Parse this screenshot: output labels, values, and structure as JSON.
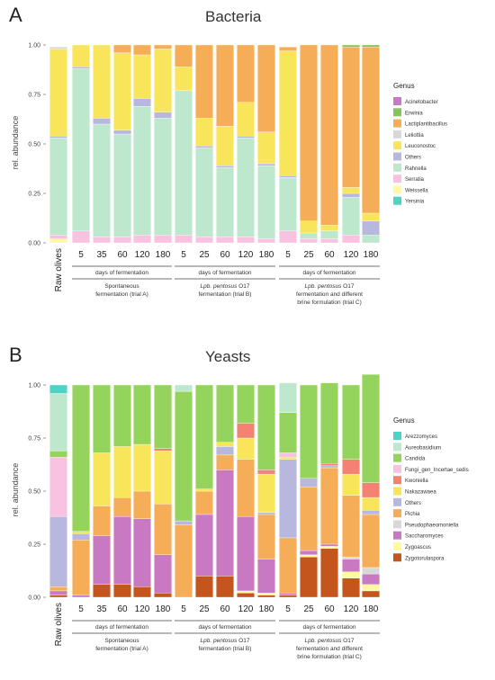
{
  "chart_data": [
    {
      "type": "bar",
      "stacked": true,
      "panel_letter": "A",
      "title": "Bacteria",
      "ylabel": "rel. abundance",
      "ylim": [
        0,
        1
      ],
      "yticks": [
        "0.00",
        "0.25",
        "0.50",
        "0.75",
        "1.00"
      ],
      "categories": [
        "Raw olives",
        "5",
        "35",
        "60",
        "120",
        "180",
        "5",
        "25",
        "60",
        "120",
        "180",
        "5",
        "25",
        "60",
        "120",
        "180"
      ],
      "groups": [
        {
          "header": "days of fermentation",
          "caption": [
            "Spontaneous",
            "fermentation (trial A)"
          ]
        },
        {
          "header": "days of fermentation",
          "caption_italic": "Lpb. pentosus",
          "caption": [
            " O17",
            "fermentation (trial B)"
          ]
        },
        {
          "header": "days of fermentation",
          "caption_italic": "Lpb. pentosus",
          "caption": [
            " O17",
            "fermentation and different",
            "brine formulation (trial C)"
          ]
        }
      ],
      "legend_title": "Genus",
      "series": [
        {
          "name": "Yersinia",
          "color": "#4fd3c4",
          "values": [
            0.0,
            0,
            0,
            0,
            0,
            0,
            0,
            0,
            0,
            0,
            0,
            0,
            0,
            0,
            0.0,
            0
          ]
        },
        {
          "name": "Weissella",
          "color": "#fff9a6",
          "values": [
            0.02,
            0,
            0,
            0,
            0,
            0,
            0,
            0,
            0,
            0,
            0,
            0,
            0,
            0,
            0.0,
            0
          ]
        },
        {
          "name": "Serratia",
          "color": "#f9c2e0",
          "values": [
            0.02,
            0.06,
            0.03,
            0.03,
            0.04,
            0.04,
            0.04,
            0.03,
            0.03,
            0.03,
            0.02,
            0.06,
            0.02,
            0.02,
            0.04,
            0.0
          ]
        },
        {
          "name": "Rahnella",
          "color": "#bde8cd",
          "values": [
            0.49,
            0.82,
            0.57,
            0.52,
            0.65,
            0.59,
            0.73,
            0.45,
            0.35,
            0.5,
            0.37,
            0.27,
            0.03,
            0.04,
            0.19,
            0.04
          ]
        },
        {
          "name": "Others",
          "color": "#b8b8de",
          "values": [
            0.01,
            0.01,
            0.03,
            0.02,
            0.04,
            0.03,
            0.0,
            0.01,
            0.01,
            0.01,
            0.01,
            0.01,
            0.0,
            0.0,
            0.02,
            0.07
          ]
        },
        {
          "name": "Leuconostoc",
          "color": "#f9e559",
          "values": [
            0.44,
            0.11,
            0.37,
            0.39,
            0.22,
            0.32,
            0.12,
            0.14,
            0.2,
            0.17,
            0.16,
            0.63,
            0.06,
            0.03,
            0.03,
            0.04
          ]
        },
        {
          "name": "Leliottia",
          "color": "#d8d8d8",
          "values": [
            0.01,
            0,
            0,
            0,
            0,
            0,
            0,
            0,
            0,
            0,
            0,
            0,
            0,
            0,
            0,
            0
          ]
        },
        {
          "name": "Lactiplantibacillus",
          "color": "#f6ad57",
          "values": [
            0.0,
            0.0,
            0.0,
            0.04,
            0.05,
            0.02,
            0.11,
            0.37,
            0.41,
            0.29,
            0.44,
            0.02,
            0.89,
            0.91,
            0.71,
            0.84
          ]
        },
        {
          "name": "Erwinia",
          "color": "#84c45c",
          "values": [
            0,
            0,
            0,
            0,
            0,
            0,
            0,
            0,
            0,
            0,
            0,
            0,
            0.0,
            0.0,
            0.01,
            0.01
          ]
        },
        {
          "name": "Acinetobacter",
          "color": "#c87ac7",
          "values": [
            0,
            0,
            0,
            0,
            0,
            0,
            0,
            0,
            0,
            0,
            0,
            0,
            0,
            0,
            0.0,
            0
          ]
        }
      ]
    },
    {
      "type": "bar",
      "stacked": true,
      "panel_letter": "B",
      "title": "Yeasts",
      "ylabel": "rel. abundance",
      "ylim": [
        0,
        1
      ],
      "yticks": [
        "0.00",
        "0.25",
        "0.50",
        "0.75",
        "1.00"
      ],
      "categories": [
        "Raw olives",
        "5",
        "35",
        "60",
        "120",
        "180",
        "5",
        "25",
        "60",
        "120",
        "180",
        "5",
        "25",
        "60",
        "120",
        "180"
      ],
      "groups": [
        {
          "header": "days of fermentation",
          "caption": [
            "Spontaneous",
            "fermentation (trial A)"
          ]
        },
        {
          "header": "days of fermentation",
          "caption_italic": "Lpb. pentosus",
          "caption": [
            " O17",
            "fermentation (trial B)"
          ]
        },
        {
          "header": "days of fermentation",
          "caption_italic": "Lpb. pentosus",
          "caption": [
            " O17",
            "fermentation and different",
            "brine formulation (trial C)"
          ]
        }
      ],
      "legend_title": "Genus",
      "series": [
        {
          "name": "Zygotorulaspora",
          "color": "#c4561d",
          "values": [
            0.01,
            0.0,
            0.06,
            0.06,
            0.05,
            0.02,
            0.0,
            0.1,
            0.1,
            0.02,
            0.01,
            0.01,
            0.19,
            0.23,
            0.09,
            0.03
          ]
        },
        {
          "name": "Zygoascus",
          "color": "#fffaa0",
          "values": [
            0,
            0,
            0,
            0,
            0,
            0,
            0,
            0,
            0,
            0.01,
            0.01,
            0,
            0.01,
            0.01,
            0.03,
            0.03
          ]
        },
        {
          "name": "Saccharomyces",
          "color": "#c978c2",
          "values": [
            0.02,
            0.01,
            0.23,
            0.32,
            0.32,
            0.18,
            0.0,
            0.29,
            0.5,
            0.35,
            0.16,
            0.01,
            0.02,
            0.01,
            0.06,
            0.05
          ]
        },
        {
          "name": "Pseudophaeomoniella",
          "color": "#d8d8d8",
          "values": [
            0,
            0,
            0,
            0,
            0,
            0,
            0,
            0,
            0,
            0,
            0,
            0,
            0,
            0,
            0.01,
            0.03
          ]
        },
        {
          "name": "Pichia",
          "color": "#f6ad57",
          "values": [
            0.02,
            0.26,
            0.14,
            0.09,
            0.13,
            0.24,
            0.34,
            0.11,
            0.07,
            0.27,
            0.21,
            0.26,
            0.3,
            0.36,
            0.29,
            0.25
          ]
        },
        {
          "name": "Others",
          "color": "#b8b8de",
          "values": [
            0.33,
            0.03,
            0.0,
            0.0,
            0.0,
            0.0,
            0.02,
            0.0,
            0.04,
            0.0,
            0.01,
            0.37,
            0.04,
            0.01,
            0.0,
            0.02
          ]
        },
        {
          "name": "Nakazawaea",
          "color": "#f9e559",
          "values": [
            0,
            0.01,
            0.25,
            0.24,
            0.22,
            0.25,
            0.0,
            0.01,
            0.02,
            0.1,
            0.18,
            0.01,
            0.0,
            0.0,
            0.1,
            0.06
          ]
        },
        {
          "name": "Kwoniella",
          "color": "#f48272",
          "values": [
            0,
            0,
            0,
            0,
            0.0,
            0.01,
            0,
            0,
            0,
            0.07,
            0.02,
            0,
            0.0,
            0.01,
            0.07,
            0.07
          ]
        },
        {
          "name": "Fungi_gen_Incertae_sedis",
          "color": "#f9c2e0",
          "values": [
            0.28,
            0,
            0,
            0,
            0,
            0,
            0,
            0,
            0,
            0,
            0,
            0.02,
            0,
            0,
            0,
            0
          ]
        },
        {
          "name": "Candida",
          "color": "#95d45c",
          "values": [
            0.03,
            0.69,
            0.32,
            0.29,
            0.28,
            0.3,
            0.61,
            0.49,
            0.27,
            0.18,
            0.4,
            0.19,
            0.44,
            0.38,
            0.35,
            0.51
          ]
        },
        {
          "name": "Aureobasidium",
          "color": "#bde8cd",
          "values": [
            0.27,
            0,
            0,
            0,
            0,
            0,
            0.03,
            0,
            0,
            0,
            0,
            0.14,
            0,
            0,
            0,
            0
          ]
        },
        {
          "name": "Arezzomyces",
          "color": "#4fd3c4",
          "values": [
            0.04,
            0,
            0,
            0,
            0,
            0,
            0,
            0,
            0,
            0,
            0,
            0,
            0,
            0,
            0,
            0
          ]
        }
      ]
    }
  ]
}
